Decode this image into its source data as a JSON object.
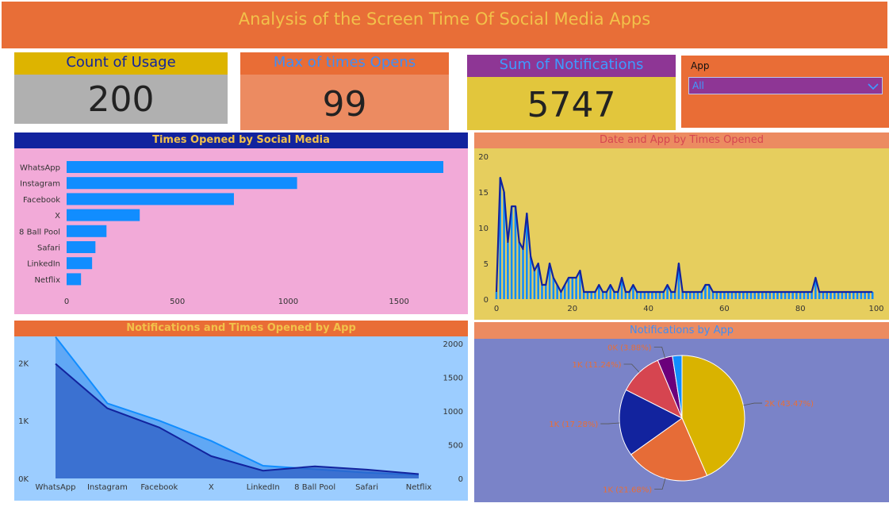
{
  "header": {
    "title": "Analysis of the Screen Time Of Social Media Apps"
  },
  "cards": [
    {
      "title": "Count of Usage",
      "value": "200"
    },
    {
      "title": "Max of times Opens",
      "value": "99"
    },
    {
      "title": "Sum of Notifications",
      "value": "5747"
    }
  ],
  "slicer": {
    "label": "App",
    "selected": "All"
  },
  "colors": {
    "header_bg": "#E86E37",
    "header_text": "#F2C14A",
    "bar_blue": "#118DFF",
    "dark_navy": "#12239E",
    "pink_bg": "#F2AAD8",
    "yellow_bg": "#E6CE5E",
    "light_blue_bg": "#9CCDFF",
    "purple_bg": "#7A83C8"
  },
  "chart_data": [
    {
      "type": "bar",
      "title": "Times Opened by Social Media",
      "categories": [
        "WhatsApp",
        "Instagram",
        "Facebook",
        "X",
        "8 Ball Pool",
        "Safari",
        "LinkedIn",
        "Netflix"
      ],
      "values": [
        1700,
        1040,
        755,
        330,
        180,
        130,
        115,
        65
      ],
      "xlim": [
        0,
        1750
      ],
      "xticks": [
        0,
        500,
        1000,
        1500
      ],
      "xtick_labels": [
        "0",
        "500",
        "1000",
        "1500"
      ]
    },
    {
      "type": "line",
      "title": "Date and App by Times Opened",
      "x": [
        0,
        1,
        2,
        3,
        4,
        5,
        6,
        7,
        8,
        9,
        10,
        11,
        12,
        13,
        14,
        15,
        16,
        17,
        18,
        19,
        20,
        21,
        22,
        23,
        24,
        25,
        26,
        27,
        28,
        29,
        30,
        31,
        32,
        33,
        34,
        35,
        36,
        37,
        38,
        39,
        40,
        41,
        42,
        43,
        44,
        45,
        46,
        47,
        48,
        49,
        50,
        51,
        52,
        53,
        54,
        55,
        56,
        57,
        58,
        59,
        60,
        61,
        62,
        63,
        64,
        65,
        66,
        67,
        68,
        69,
        70,
        71,
        72,
        73,
        74,
        75,
        76,
        77,
        78,
        79,
        80,
        81,
        82,
        83,
        84,
        85,
        86,
        87,
        88,
        89,
        90,
        91,
        92,
        93,
        94,
        95,
        96,
        97,
        98,
        99
      ],
      "y": [
        1,
        17,
        15,
        8,
        13,
        13,
        8,
        7,
        12,
        6,
        4,
        5,
        2,
        2,
        5,
        3,
        2,
        1,
        2,
        3,
        3,
        3,
        4,
        1,
        1,
        1,
        1,
        2,
        1,
        1,
        2,
        1,
        1,
        3,
        1,
        1,
        2,
        1,
        1,
        1,
        1,
        1,
        1,
        1,
        1,
        2,
        1,
        1,
        5,
        1,
        1,
        1,
        1,
        1,
        1,
        2,
        2,
        1,
        1,
        1,
        1,
        1,
        1,
        1,
        1,
        1,
        1,
        1,
        1,
        1,
        1,
        1,
        1,
        1,
        1,
        1,
        1,
        1,
        1,
        1,
        1,
        1,
        1,
        1,
        3,
        1,
        1,
        1,
        1,
        1,
        1,
        1,
        1,
        1,
        1,
        1,
        1,
        1,
        1,
        1
      ],
      "ylim": [
        0,
        20
      ],
      "yticks": [
        0,
        5,
        10,
        15,
        20
      ],
      "ytick_labels": [
        "0",
        "5",
        "10",
        "15",
        "20"
      ],
      "xlim": [
        0,
        100
      ],
      "xticks": [
        0,
        20,
        40,
        60,
        80,
        100
      ],
      "xtick_labels": [
        "0",
        "20",
        "40",
        "60",
        "80",
        "100"
      ]
    },
    {
      "type": "area",
      "title": "Notifications and Times Opened by App",
      "categories": [
        "WhatsApp",
        "Instagram",
        "Facebook",
        "X",
        "LinkedIn",
        "8 Ball Pool",
        "Safari",
        "Netflix"
      ],
      "series": [
        {
          "values": [
            2450,
            1300,
            1000,
            650,
            220,
            160,
            100,
            60
          ],
          "axis": "left"
        },
        {
          "values": [
            1700,
            1040,
            755,
            330,
            115,
            180,
            130,
            65
          ],
          "axis": "right"
        }
      ],
      "left_ylim": [
        0,
        2500
      ],
      "left_yticks": [
        0,
        1000,
        2000
      ],
      "left_ytick_labels": [
        "0K",
        "1K",
        "2K"
      ],
      "right_ylim": [
        0,
        2000
      ],
      "right_yticks": [
        0,
        500,
        1000,
        1500,
        2000
      ],
      "right_ytick_labels": [
        "0",
        "500",
        "1000",
        "1500",
        "2000"
      ]
    },
    {
      "type": "pie",
      "title": "Notifications by App",
      "values": [
        43.47,
        21.68,
        17.28,
        11.24,
        3.88,
        2.45
      ],
      "labels": [
        "2K (43.47%)",
        "1K (21.68%)",
        "1K (17.28%)",
        "1K (11.24%)",
        "0K (3.88%)",
        ""
      ],
      "colors": [
        "#D9B300",
        "#E66C37",
        "#12239E",
        "#D64550",
        "#6B007B",
        "#118DFF"
      ]
    }
  ]
}
